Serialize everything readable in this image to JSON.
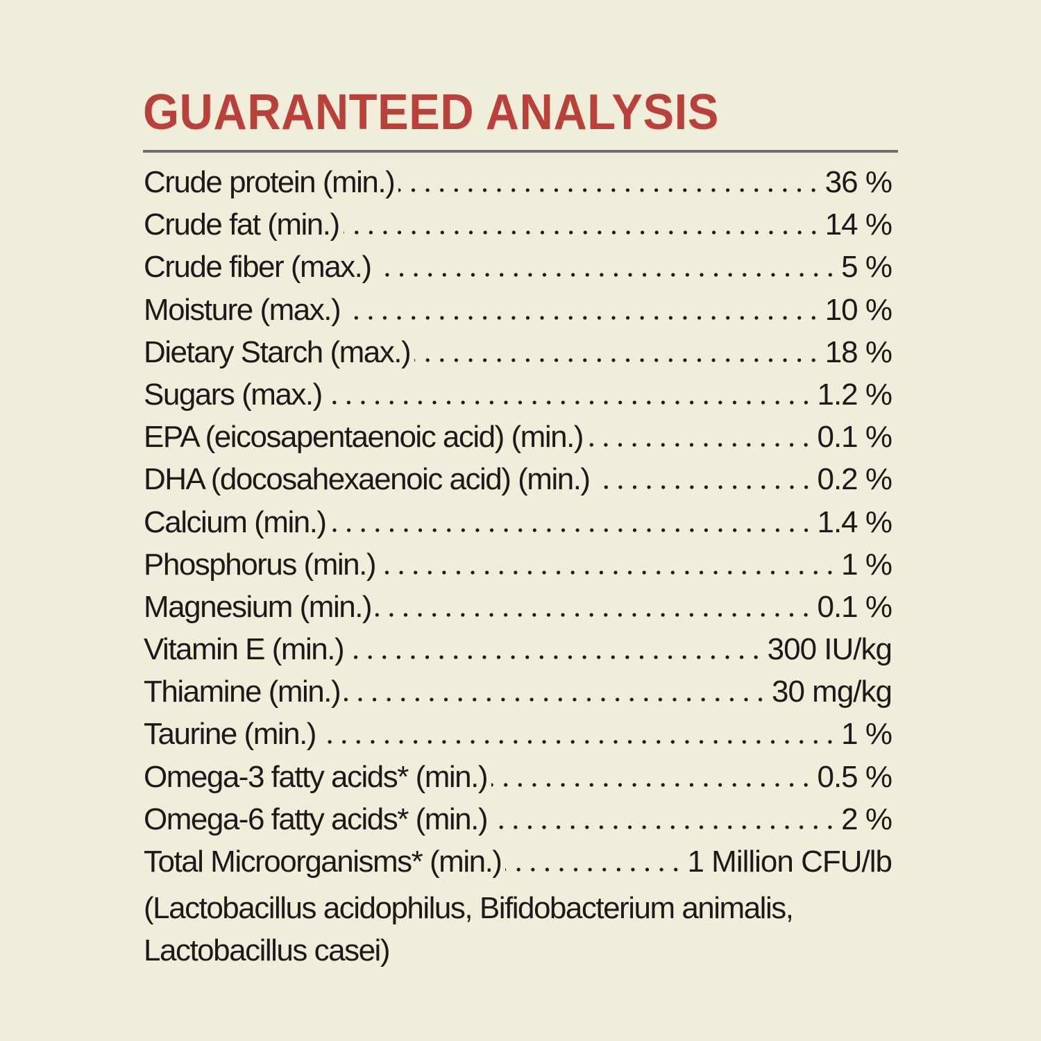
{
  "document": {
    "title": "GUARANTEED ANALYSIS",
    "colors": {
      "background": "#f1eddb",
      "title": "#b9413a",
      "rule": "#6f6f6f",
      "text": "#1a1a1a"
    },
    "rows": [
      {
        "label": "Crude protein (min.)",
        "value": "36 %"
      },
      {
        "label": "Crude fat (min.)",
        "value": "14 %"
      },
      {
        "label": "Crude fiber (max.)",
        "value": "5 %"
      },
      {
        "label": "Moisture (max.)",
        "value": "10 %"
      },
      {
        "label": "Dietary Starch (max.)",
        "value": "18 %"
      },
      {
        "label": "Sugars (max.)",
        "value": "1.2 %"
      },
      {
        "label": "EPA (eicosapentaenoic acid) (min.)",
        "value": "0.1 %"
      },
      {
        "label": "DHA (docosahexaenoic acid) (min.)",
        "value": "0.2 %"
      },
      {
        "label": "Calcium (min.)",
        "value": "1.4 %"
      },
      {
        "label": "Phosphorus (min.)",
        "value": "1 %"
      },
      {
        "label": "Magnesium (min.)",
        "value": "0.1 %"
      },
      {
        "label": "Vitamin E (min.)",
        "value": "300 IU/kg"
      },
      {
        "label": "Thiamine (min.)",
        "value": "30 mg/kg"
      },
      {
        "label": "Taurine (min.)",
        "value": "1 %"
      },
      {
        "label": "Omega-3 fatty acids* (min.)",
        "value": "0.5 %"
      },
      {
        "label": "Omega-6 fatty acids* (min.)",
        "value": "2 %"
      },
      {
        "label": "Total Microorganisms* (min.)",
        "value": "1 Million CFU/lb"
      }
    ],
    "footnote_lines": [
      "(Lactobacillus acidophilus, Bifidobacterium animalis,",
      "Lactobacillus casei)"
    ]
  }
}
